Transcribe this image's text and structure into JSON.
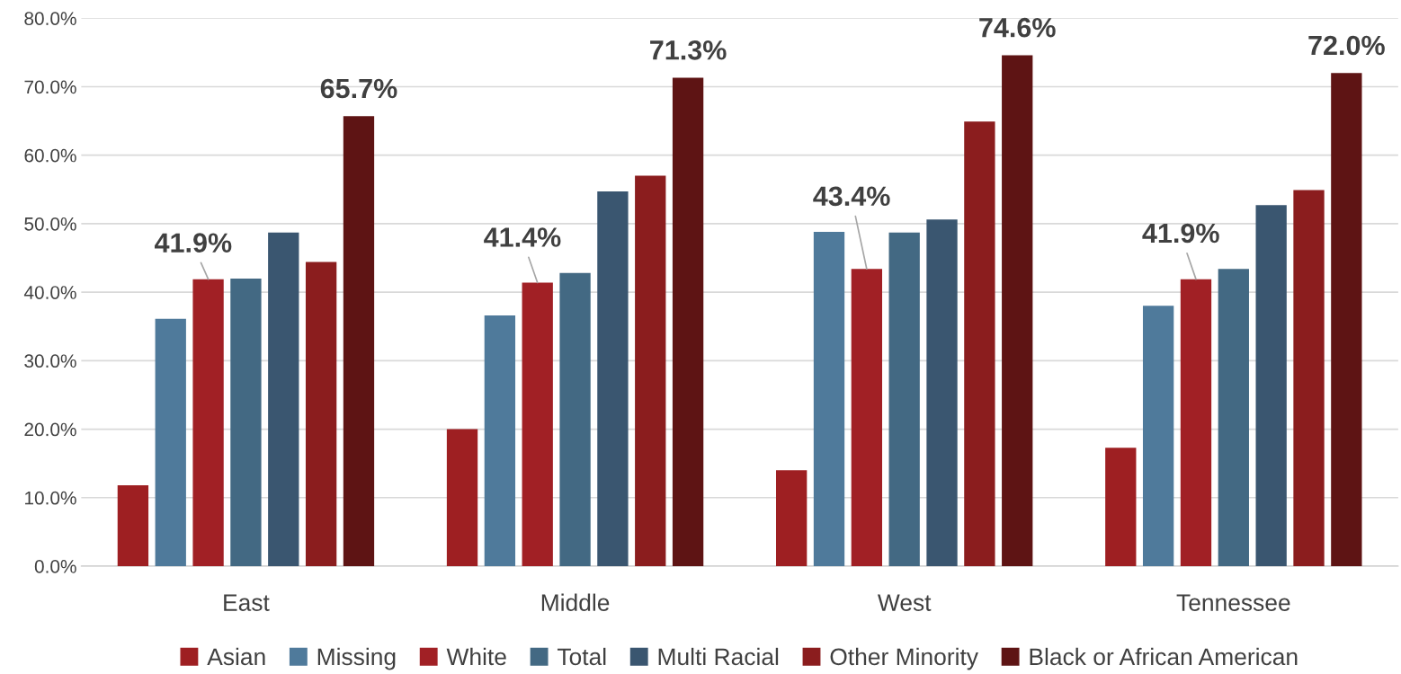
{
  "chart_data": {
    "type": "bar",
    "categories": [
      "East",
      "Middle",
      "West",
      "Tennessee"
    ],
    "series": [
      {
        "name": "Asian",
        "color": "#9e1f22",
        "values": [
          11.8,
          20.0,
          14.0,
          17.3
        ]
      },
      {
        "name": "Missing",
        "color": "#4f7a9b",
        "values": [
          36.1,
          36.6,
          48.8,
          38.0
        ]
      },
      {
        "name": "White",
        "color": "#a12025",
        "values": [
          41.9,
          41.4,
          43.4,
          41.9
        ],
        "value_labels": [
          "41.9%",
          "41.4%",
          "43.4%",
          "41.9%"
        ]
      },
      {
        "name": "Total",
        "color": "#436983",
        "values": [
          42.0,
          42.8,
          48.7,
          43.4
        ]
      },
      {
        "name": "Multi Racial",
        "color": "#3a5670",
        "values": [
          48.7,
          54.7,
          50.6,
          52.7
        ]
      },
      {
        "name": "Other Minority",
        "color": "#8b1d1e",
        "values": [
          44.4,
          57.0,
          64.9,
          54.9
        ]
      },
      {
        "name": "Black or African American",
        "color": "#5e1414",
        "values": [
          65.7,
          71.3,
          74.6,
          72.0
        ],
        "value_labels": [
          "65.7%",
          "71.3%",
          "74.6%",
          "72.0%"
        ]
      }
    ],
    "ylim": [
      0,
      80
    ],
    "yticks": [
      {
        "value": 0,
        "label": "0.0%"
      },
      {
        "value": 10,
        "label": "10.0%"
      },
      {
        "value": 20,
        "label": "20.0%"
      },
      {
        "value": 30,
        "label": "30.0%"
      },
      {
        "value": 40,
        "label": "40.0%"
      },
      {
        "value": 50,
        "label": "50.0%"
      },
      {
        "value": 60,
        "label": "60.0%"
      },
      {
        "value": 70,
        "label": "70.0%"
      },
      {
        "value": 80,
        "label": "80.0%"
      }
    ],
    "grid": "y",
    "legend": "bottom"
  }
}
